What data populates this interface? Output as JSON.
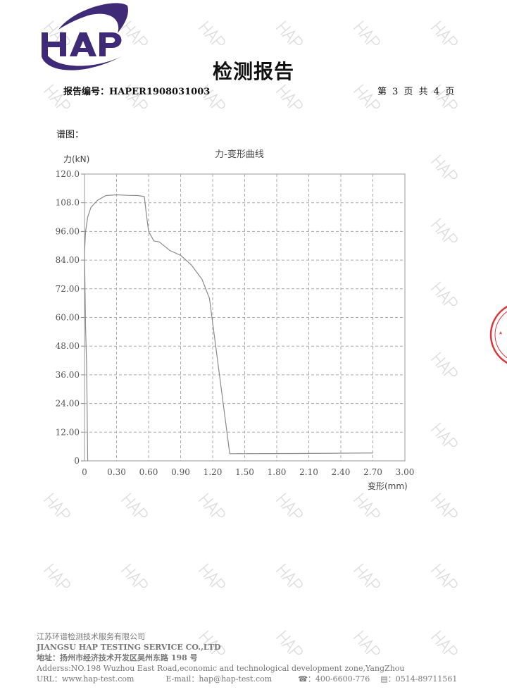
{
  "header": {
    "logo_text": "HAP",
    "title": "检测报告",
    "report_number": "报告编号：HAPER1908031003",
    "page_info": "第 3 页 共 4 页"
  },
  "section_label": "谱图：",
  "watermark_text": "HAP",
  "chart_data": {
    "type": "line",
    "title": "力-变形曲线",
    "ylabel": "力(kN)",
    "xlabel": "变形(mm)",
    "xlim": [
      0,
      3.0
    ],
    "ylim": [
      0,
      120
    ],
    "grid": true,
    "x_ticks": [
      "0",
      "0.30",
      "0.60",
      "0.90",
      "1.20",
      "1.50",
      "1.80",
      "2.10",
      "2.40",
      "2.70",
      "3.00"
    ],
    "y_ticks": [
      "0",
      "12.00",
      "24.00",
      "36.00",
      "48.00",
      "60.00",
      "72.00",
      "84.00",
      "96.00",
      "108.0",
      "120.0"
    ],
    "series": [
      {
        "color": "#8a8a8a",
        "points": [
          [
            0.03,
            0
          ],
          [
            0.02,
            40
          ],
          [
            0.01,
            56
          ],
          [
            0.0,
            87
          ],
          [
            0.01,
            96
          ],
          [
            0.03,
            102
          ],
          [
            0.06,
            106
          ],
          [
            0.12,
            109
          ],
          [
            0.2,
            111
          ],
          [
            0.3,
            111.3
          ],
          [
            0.4,
            111.1
          ],
          [
            0.5,
            111
          ],
          [
            0.56,
            110.6
          ],
          [
            0.58,
            103
          ],
          [
            0.6,
            96
          ],
          [
            0.65,
            92
          ],
          [
            0.7,
            91.6
          ],
          [
            0.8,
            88
          ],
          [
            0.9,
            86
          ],
          [
            1.0,
            82
          ],
          [
            1.1,
            76
          ],
          [
            1.17,
            68
          ],
          [
            1.36,
            3
          ],
          [
            2.0,
            3.1
          ],
          [
            2.7,
            3.3
          ]
        ]
      }
    ]
  },
  "footer": {
    "company_cn": "江苏环谱检测技术服务有限公司",
    "company_en": "JIANGSU HAP TESTING SERVICE CO.,LTD",
    "address_cn": "地址：扬州市经济技术开发区吴州东路 198 号",
    "address_en": "Adderss:NO.198 Wuzhou East Road,economic and technological development zone,YangZhou",
    "url": "URL：www.hap-test.com",
    "email": "E-mail：hap@hap-test.com",
    "phone": "：400-6600-776",
    "fax": "：0514-89711561"
  },
  "colors": {
    "brand": "#3f2a78",
    "stamp": "#d9393b"
  }
}
